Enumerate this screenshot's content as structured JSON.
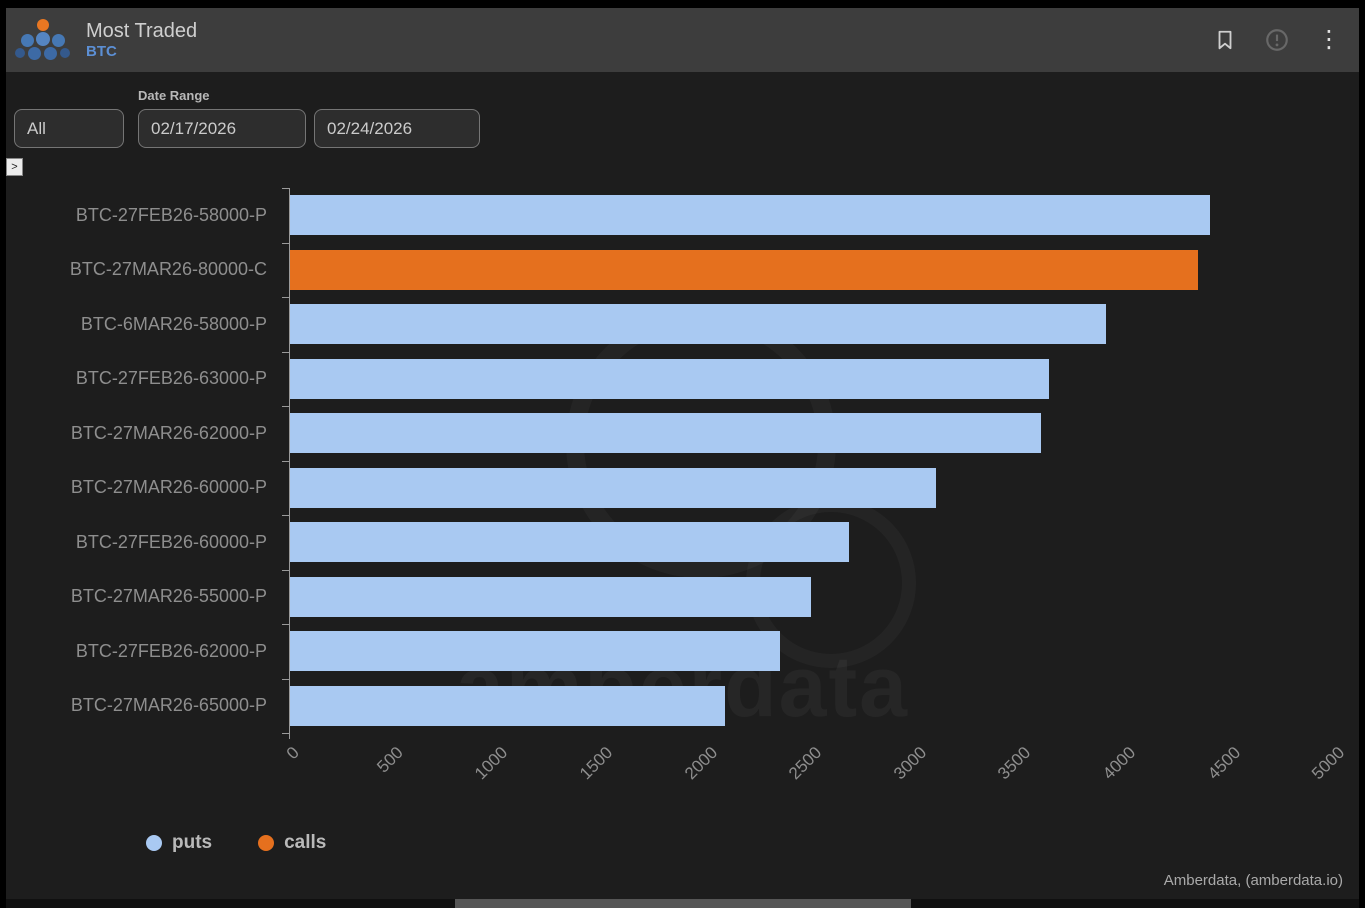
{
  "header": {
    "title": "Most Traded",
    "subtitle": "BTC",
    "menu_glyph": "⋮"
  },
  "filters": {
    "date_range_label": "Date Range",
    "asset_select_value": "All",
    "start_date": "02/17/2026",
    "end_date": "02/24/2026",
    "expand_glyph": ">"
  },
  "chart_data": {
    "type": "bar",
    "orientation": "horizontal",
    "categories": [
      "BTC-27FEB26-58000-P",
      "BTC-27MAR26-80000-C",
      "BTC-6MAR26-58000-P",
      "BTC-27FEB26-63000-P",
      "BTC-27MAR26-62000-P",
      "BTC-27MAR26-60000-P",
      "BTC-27FEB26-60000-P",
      "BTC-27MAR26-55000-P",
      "BTC-27FEB26-62000-P",
      "BTC-27MAR26-65000-P"
    ],
    "values": [
      4400,
      4340,
      3900,
      3630,
      3590,
      3090,
      2670,
      2490,
      2340,
      2080
    ],
    "series_by_bar": [
      "puts",
      "calls",
      "puts",
      "puts",
      "puts",
      "puts",
      "puts",
      "puts",
      "puts",
      "puts"
    ],
    "series_colors": {
      "puts": "#a9c9f2",
      "calls": "#e5701e"
    },
    "x_ticks": [
      0,
      500,
      1000,
      1500,
      2000,
      2500,
      3000,
      3500,
      4000,
      4500,
      5000
    ],
    "xlim": [
      0,
      5000
    ],
    "grid": false,
    "legend": [
      {
        "label": "puts",
        "color": "#a9c9f2"
      },
      {
        "label": "calls",
        "color": "#e5701e"
      }
    ],
    "legend_position": "bottom-left"
  },
  "watermark_text": "amberdata",
  "attribution": "Amberdata, (amberdata.io)"
}
